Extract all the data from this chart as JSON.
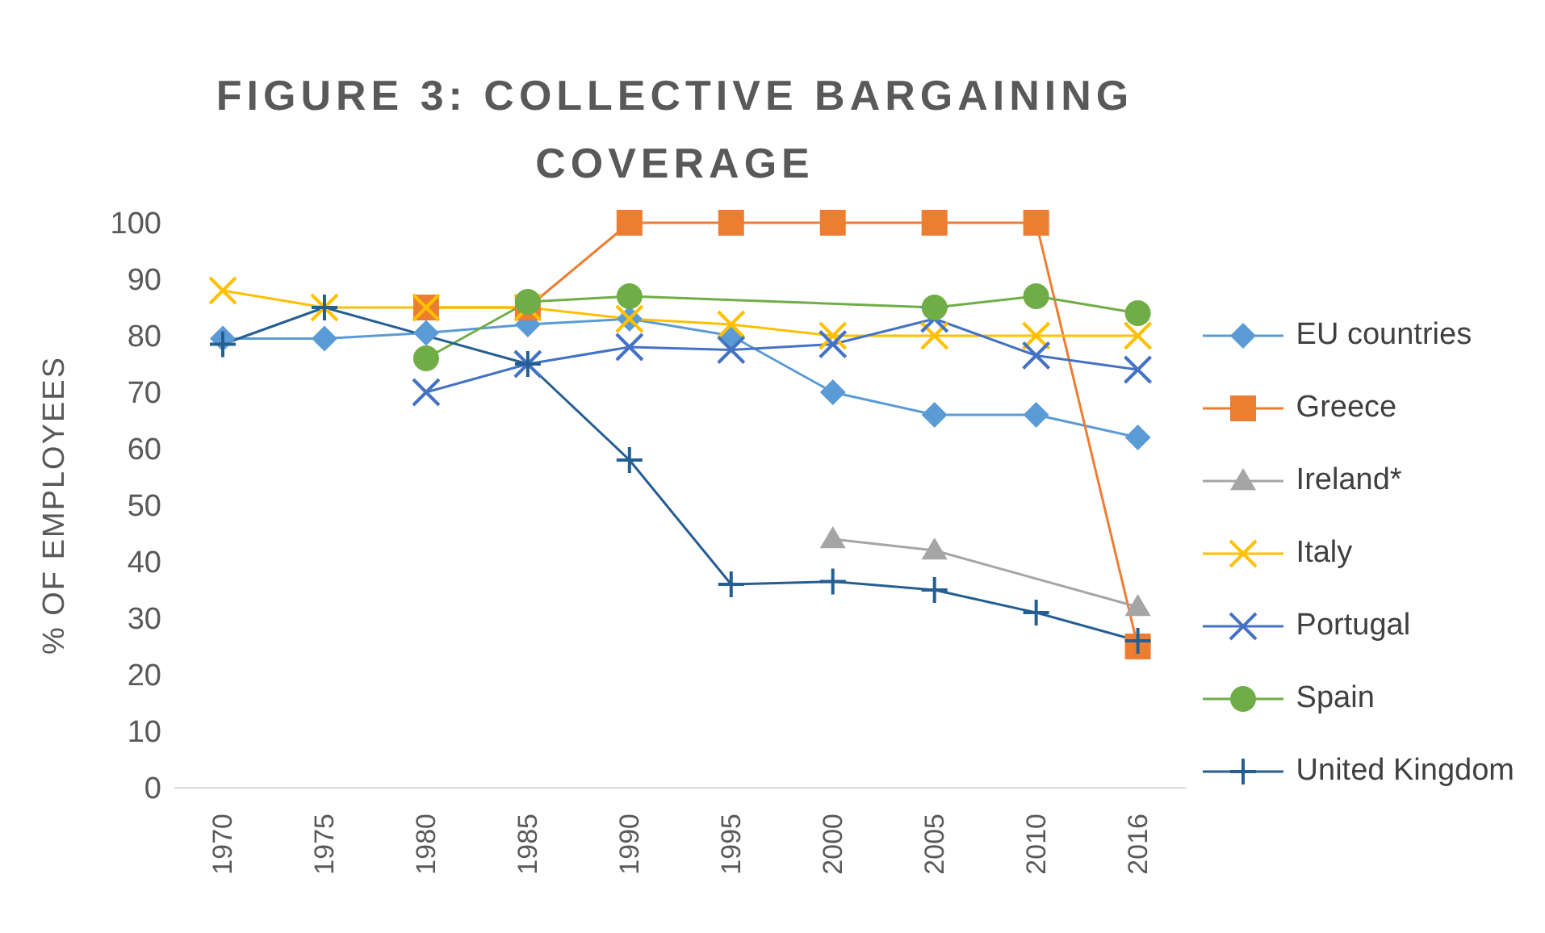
{
  "chart_data": {
    "type": "line",
    "title": "FIGURE 3: COLLECTIVE BARGAINING COVERAGE",
    "ylabel": "% OF EMPLOYEES",
    "categories": [
      "1970",
      "1975",
      "1980",
      "1985",
      "1990",
      "1995",
      "2000",
      "2005",
      "2010",
      "2016"
    ],
    "series": [
      {
        "name": "EU countries",
        "color": "#5b9bd5",
        "marker": "diamond",
        "values": [
          79.5,
          79.5,
          80.5,
          82,
          83,
          80,
          70,
          66,
          66,
          62
        ]
      },
      {
        "name": "Greece",
        "color": "#ed7d31",
        "marker": "square",
        "values": [
          null,
          null,
          85,
          85,
          100,
          100,
          100,
          100,
          100,
          25
        ]
      },
      {
        "name": "Ireland*",
        "color": "#a5a5a5",
        "marker": "triangle",
        "values": [
          null,
          null,
          null,
          null,
          null,
          null,
          44,
          42,
          null,
          32
        ]
      },
      {
        "name": "Italy",
        "color": "#ffc000",
        "marker": "cross",
        "values": [
          88,
          85,
          85,
          85,
          83,
          82,
          80,
          80,
          80,
          80
        ]
      },
      {
        "name": "Portugal",
        "color": "#4472c4",
        "marker": "cross",
        "values": [
          null,
          null,
          70,
          75,
          78,
          77.5,
          78.5,
          83,
          76.5,
          74
        ]
      },
      {
        "name": "Spain",
        "color": "#70ad47",
        "marker": "circle",
        "values": [
          null,
          null,
          76,
          86,
          87,
          null,
          null,
          85,
          87,
          84
        ]
      },
      {
        "name": "United Kingdom",
        "color": "#255e91",
        "marker": "plus",
        "values": [
          78.5,
          85,
          null,
          75,
          58,
          36,
          36.5,
          35,
          31,
          26
        ]
      }
    ],
    "ylim": [
      0,
      100
    ],
    "yticks": [
      0,
      10,
      20,
      30,
      40,
      50,
      60,
      70,
      80,
      90,
      100
    ],
    "grid": false,
    "legend": "right"
  }
}
